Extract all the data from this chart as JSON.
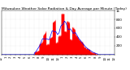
{
  "title": "Milwaukee Weather Solar Radiation & Day Average per Minute (Today)",
  "background_color": "#ffffff",
  "plot_bg_color": "#ffffff",
  "grid_color": "#cccccc",
  "fill_color": "#ff0000",
  "avg_line_color": "#0000ff",
  "ylim": [
    0,
    1000
  ],
  "xlim": [
    0,
    1440
  ],
  "title_fontsize": 3.2,
  "ylabel_fontsize": 3.0,
  "xlabel_fontsize": 2.8,
  "ytick_labels": [
    "200",
    "400",
    "600",
    "800",
    "1k"
  ],
  "ytick_values": [
    200,
    400,
    600,
    800,
    1000
  ],
  "xtick_positions": [
    0,
    60,
    120,
    180,
    240,
    300,
    360,
    420,
    480,
    540,
    600,
    660,
    720,
    780,
    840,
    900,
    960,
    1020,
    1080,
    1140,
    1200,
    1260,
    1320,
    1380,
    1440
  ],
  "xtick_labels": [
    "12",
    "1",
    "2",
    "3",
    "4",
    "5",
    "6",
    "7",
    "8",
    "9",
    "10",
    "11",
    "12",
    "1",
    "2",
    "3",
    "4",
    "5",
    "6",
    "7",
    "8",
    "9",
    "10",
    "11",
    "12"
  ]
}
